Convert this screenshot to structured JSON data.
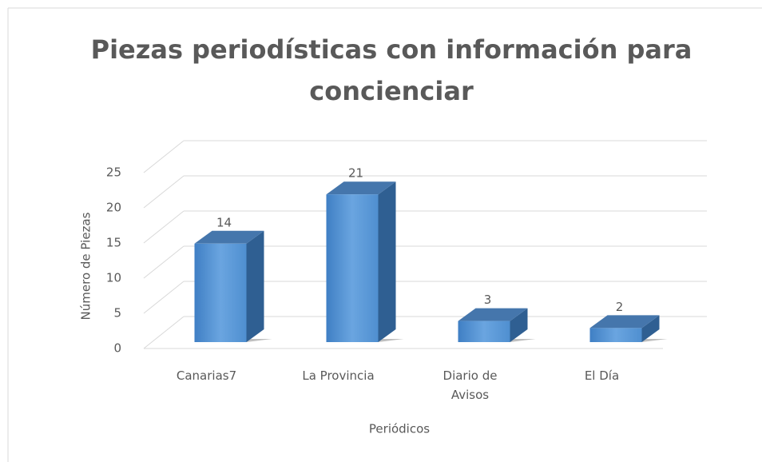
{
  "chart_data": {
    "type": "bar3d",
    "title": "Piezas periodísticas  con información  para concienciar",
    "x_label": "Periódicos",
    "y_label": "Número de Piezas",
    "categories": [
      "Canarias7",
      "La Provincia",
      "Diario de Avisos",
      "El Día"
    ],
    "values": [
      14,
      21,
      3,
      2
    ],
    "color": "#4f8fd0",
    "ylim": [
      0,
      25
    ],
    "yticks": [
      0,
      5,
      10,
      15,
      20,
      25
    ],
    "grid": true
  }
}
